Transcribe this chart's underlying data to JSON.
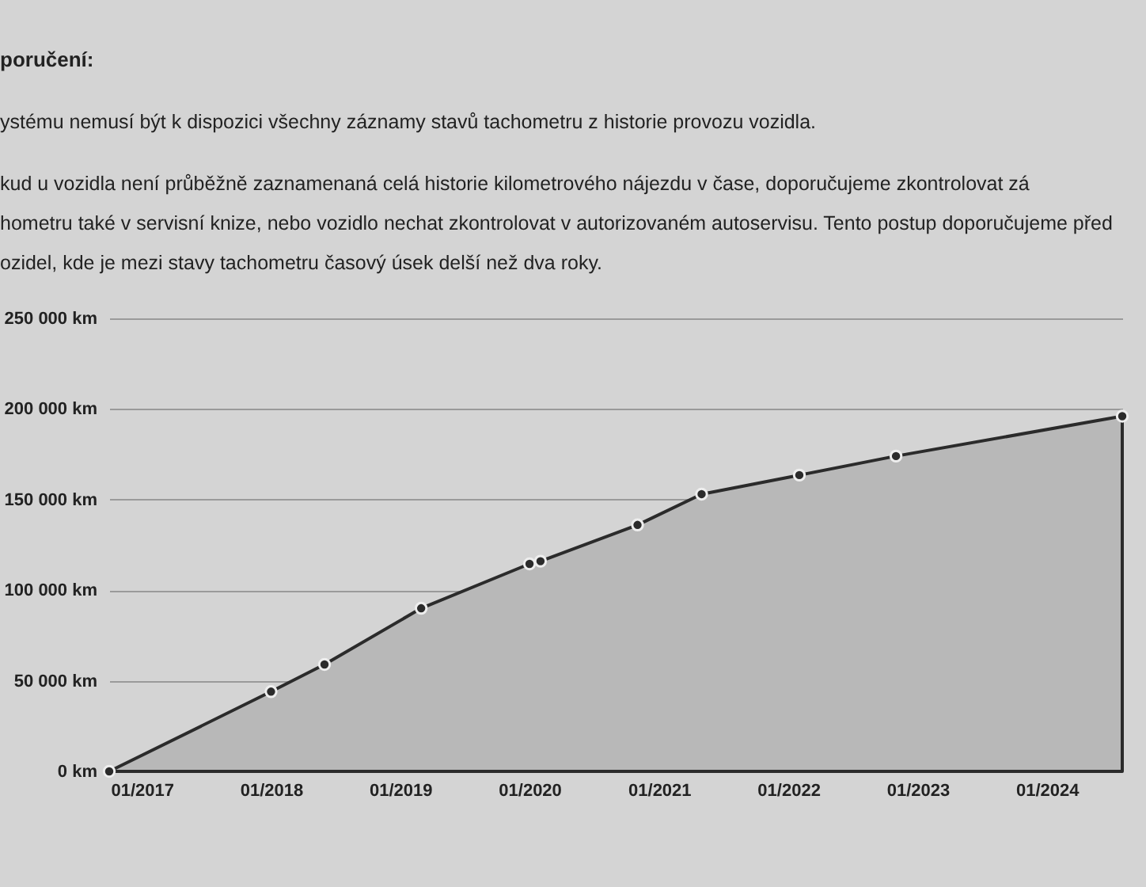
{
  "chart_data": {
    "type": "area",
    "title": "poručení:",
    "annotations": [
      "ystému nemusí být k dispozici všechny záznamy stavů tachometru z historie provozu vozidla.",
      "kud u vozidla není průběžně zaznamenaná celá historie kilometrového nájezdu v čase, doporučujeme zkontrolovat zá",
      "hometru také v servisní knize, nebo vozidlo nechat zkontrolovat v autorizovaném autoservisu. Tento postup doporučujeme před",
      "ozidel, kde je mezi stavy tachometru časový úsek delší než dva roky."
    ],
    "x": [
      "2016-10",
      "2018-01",
      "2018-06",
      "2019-03",
      "2020-01",
      "2020-02",
      "2020-11",
      "2021-05",
      "2022-02",
      "2022-11",
      "2024-08"
    ],
    "series": [
      {
        "color": "#2b2b2b",
        "values": [
          0,
          44000,
          59000,
          90000,
          114500,
          116000,
          136000,
          153000,
          163500,
          174000,
          196000
        ]
      }
    ],
    "xlim": [
      "2016-10",
      "2024-08"
    ],
    "xticks": [
      {
        "value": "2017-01",
        "label": "01/2017"
      },
      {
        "value": "2018-01",
        "label": "01/2018"
      },
      {
        "value": "2019-01",
        "label": "01/2019"
      },
      {
        "value": "2020-01",
        "label": "01/2020"
      },
      {
        "value": "2021-01",
        "label": "01/2021"
      },
      {
        "value": "2022-01",
        "label": "01/2022"
      },
      {
        "value": "2023-01",
        "label": "01/2023"
      },
      {
        "value": "2024-01",
        "label": "01/2024"
      }
    ],
    "ylim": [
      0,
      250000
    ],
    "yticks": [
      {
        "value": 0,
        "label": "0 km"
      },
      {
        "value": 50000,
        "label": "50 000 km"
      },
      {
        "value": 100000,
        "label": "100 000 km"
      },
      {
        "value": 150000,
        "label": "150 000 km"
      },
      {
        "value": 200000,
        "label": "200 000 km"
      },
      {
        "value": 250000,
        "label": "250 000 km"
      }
    ],
    "grid": "y",
    "marker": "circle"
  }
}
